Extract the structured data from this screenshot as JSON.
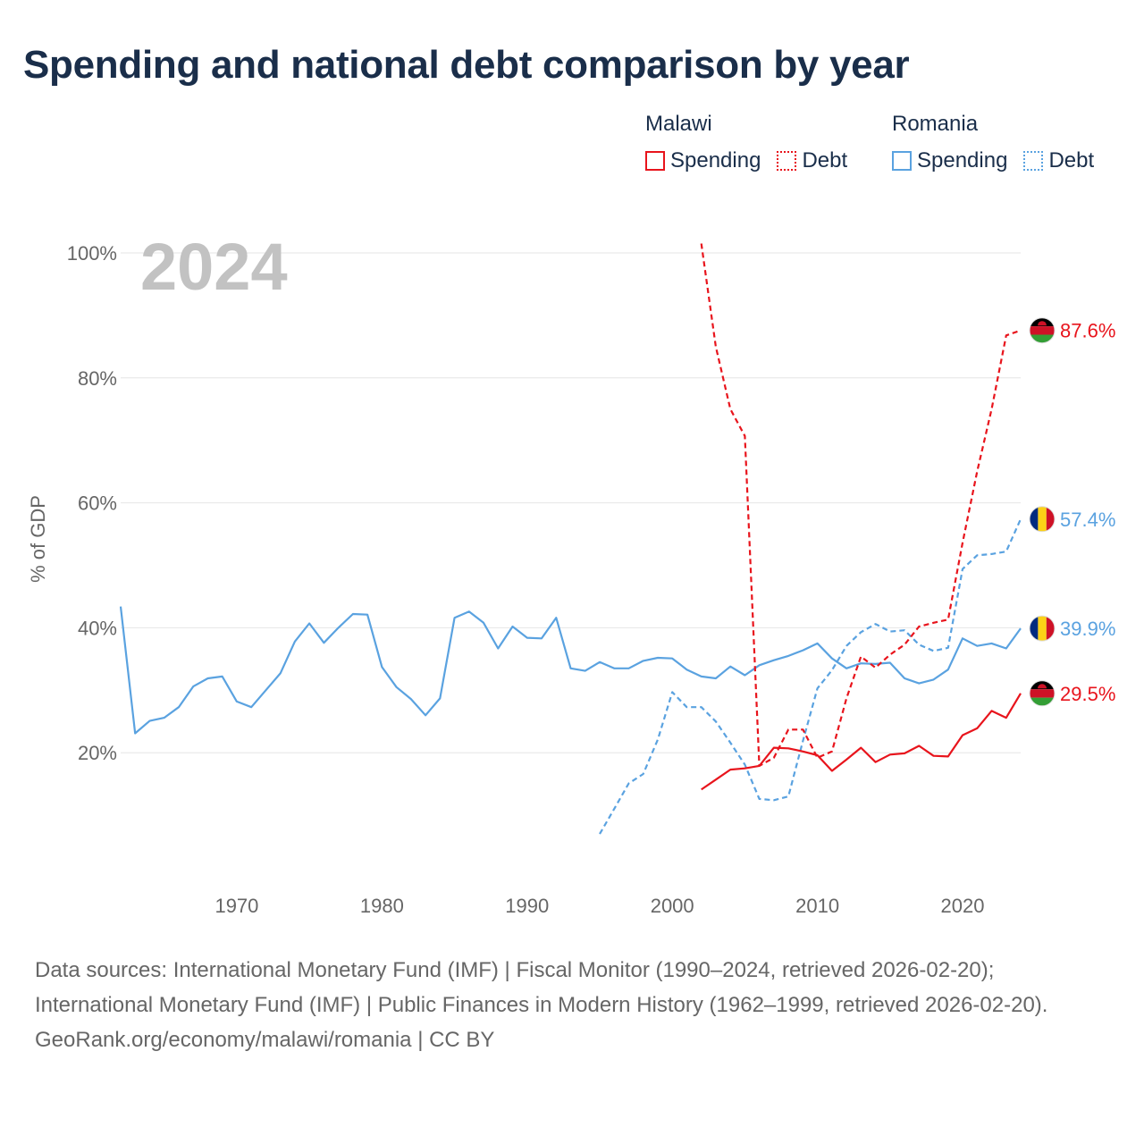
{
  "title": "Spending and national debt comparison by year",
  "legend": {
    "groups": [
      {
        "name": "Malawi",
        "items": [
          "Spending",
          "Debt"
        ]
      },
      {
        "name": "Romania",
        "items": [
          "Spending",
          "Debt"
        ]
      }
    ]
  },
  "year_label": "2024",
  "colors": {
    "malawi": "#e8141c",
    "romania": "#5aa2e0",
    "grid": "#e6e6e6",
    "axis_text": "#666666",
    "year_text": "#c2c2c2"
  },
  "footer": {
    "sources": "Data sources: International Monetary Fund (IMF) | Fiscal Monitor (1990–2024, retrieved 2026-02-20); International Monetary Fund (IMF) | Public Finances in Modern History (1962–1999, retrieved 2026-02-20).",
    "credit": "GeoRank.org/economy/malawi/romania | CC BY"
  },
  "chart_data": {
    "type": "line",
    "title": "Spending and national debt comparison by year",
    "xlabel": "",
    "ylabel": "% of GDP",
    "xlim": [
      1962,
      2024
    ],
    "ylim": [
      0,
      100
    ],
    "xticks": [
      1970,
      1980,
      1990,
      2000,
      2010,
      2020
    ],
    "yticks": [
      20,
      40,
      60,
      80,
      100
    ],
    "ytick_labels": [
      "20%",
      "40%",
      "60%",
      "80%",
      "100%"
    ],
    "grid": true,
    "series": [
      {
        "name": "Romania Spending",
        "country": "Romania",
        "metric": "Spending",
        "style": "solid",
        "color": "#5aa2e0",
        "end_label": "39.9%",
        "x": [
          1962,
          1963,
          1964,
          1965,
          1966,
          1967,
          1968,
          1969,
          1970,
          1971,
          1972,
          1973,
          1974,
          1975,
          1976,
          1977,
          1978,
          1979,
          1980,
          1981,
          1982,
          1983,
          1984,
          1985,
          1986,
          1987,
          1988,
          1989,
          1990,
          1991,
          1992,
          1993,
          1994,
          1995,
          1996,
          1997,
          1998,
          1999,
          2000,
          2001,
          2002,
          2003,
          2004,
          2005,
          2006,
          2007,
          2008,
          2009,
          2010,
          2011,
          2012,
          2013,
          2014,
          2015,
          2016,
          2017,
          2018,
          2019,
          2020,
          2021,
          2022,
          2023,
          2024
        ],
        "y": [
          43.4,
          23.1,
          25.1,
          25.6,
          27.3,
          30.6,
          31.9,
          32.2,
          28.2,
          27.3,
          30.0,
          32.7,
          37.8,
          40.7,
          37.6,
          40.0,
          42.2,
          42.1,
          33.7,
          30.5,
          28.6,
          26.0,
          28.7,
          41.6,
          42.6,
          40.8,
          36.7,
          40.2,
          38.4,
          38.3,
          41.6,
          33.5,
          33.1,
          34.5,
          33.5,
          33.5,
          34.7,
          35.2,
          35.1,
          33.3,
          32.2,
          31.9,
          33.8,
          32.4,
          34.0,
          34.8,
          35.5,
          36.4,
          37.5,
          35.1,
          33.5,
          34.3,
          34.2,
          34.4,
          31.9,
          31.1,
          31.7,
          33.3,
          38.3,
          37.1,
          37.5,
          36.7,
          39.9
        ]
      },
      {
        "name": "Romania Debt",
        "country": "Romania",
        "metric": "Debt",
        "style": "dashed",
        "color": "#5aa2e0",
        "end_label": "57.4%",
        "x": [
          1995,
          1996,
          1997,
          1998,
          1999,
          2000,
          2001,
          2002,
          2003,
          2004,
          2005,
          2006,
          2007,
          2008,
          2009,
          2010,
          2011,
          2012,
          2013,
          2014,
          2015,
          2016,
          2017,
          2018,
          2019,
          2020,
          2021,
          2022,
          2023,
          2024
        ],
        "y": [
          7.0,
          11.0,
          15.1,
          16.6,
          22.1,
          29.7,
          27.3,
          27.3,
          25.0,
          21.6,
          18.1,
          12.6,
          12.4,
          13.0,
          21.9,
          30.3,
          33.2,
          37.1,
          39.3,
          40.6,
          39.4,
          39.6,
          37.3,
          36.3,
          36.8,
          49.4,
          51.6,
          51.8,
          52.2,
          57.4
        ]
      },
      {
        "name": "Malawi Spending",
        "country": "Malawi",
        "metric": "Spending",
        "style": "solid",
        "color": "#e8141c",
        "end_label": "29.5%",
        "x": [
          2002,
          2003,
          2004,
          2005,
          2006,
          2007,
          2008,
          2009,
          2010,
          2011,
          2012,
          2013,
          2014,
          2015,
          2016,
          2017,
          2018,
          2019,
          2020,
          2021,
          2022,
          2023,
          2024
        ],
        "y": [
          14.1,
          15.7,
          17.3,
          17.5,
          17.9,
          20.8,
          20.7,
          20.2,
          19.6,
          17.1,
          18.9,
          20.8,
          18.5,
          19.7,
          19.9,
          21.1,
          19.5,
          19.4,
          22.8,
          23.9,
          26.7,
          25.6,
          29.5
        ]
      },
      {
        "name": "Malawi Debt",
        "country": "Malawi",
        "metric": "Debt",
        "style": "dashed",
        "color": "#e8141c",
        "end_label": "87.6%",
        "x": [
          2002,
          2003,
          2004,
          2005,
          2006,
          2007,
          2008,
          2009,
          2010,
          2011,
          2012,
          2013,
          2014,
          2015,
          2016,
          2017,
          2018,
          2019,
          2020,
          2021,
          2022,
          2023,
          2024
        ],
        "y": [
          101.5,
          85.0,
          75.0,
          70.7,
          17.9,
          19.2,
          23.7,
          23.7,
          19.2,
          20.2,
          28.7,
          35.4,
          33.6,
          35.7,
          37.3,
          40.2,
          40.8,
          41.3,
          53.6,
          65.0,
          75.0,
          86.8,
          87.6
        ]
      }
    ]
  }
}
